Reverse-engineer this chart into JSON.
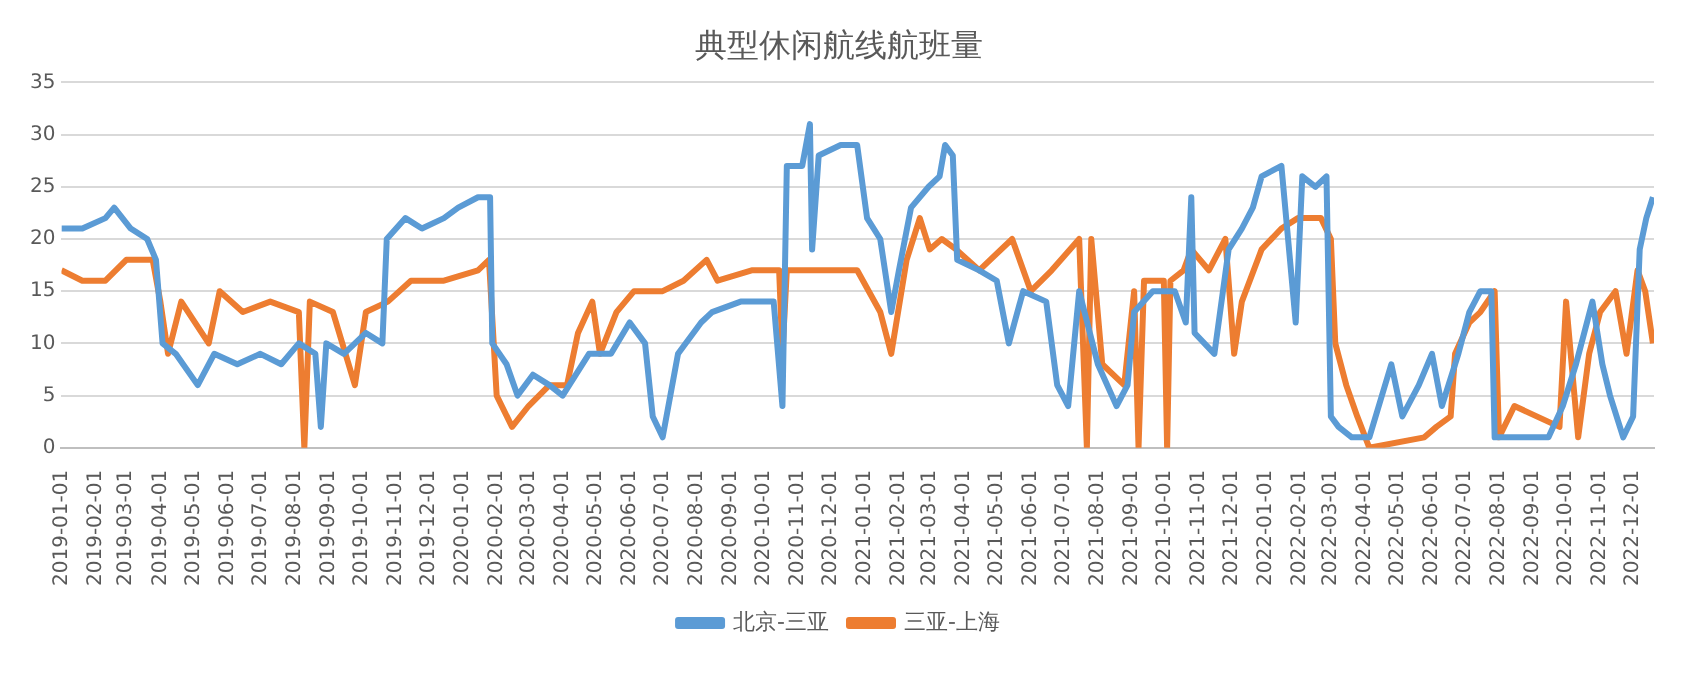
{
  "chart_data": {
    "type": "line",
    "title": "典型休闲航线航班量",
    "xlim": [
      "2019-01-01",
      "2022-12-20"
    ],
    "xticks": [
      "2019-01-01",
      "2019-02-01",
      "2019-03-01",
      "2019-04-01",
      "2019-05-01",
      "2019-06-01",
      "2019-07-01",
      "2019-08-01",
      "2019-09-01",
      "2019-10-01",
      "2019-11-01",
      "2019-12-01",
      "2020-01-01",
      "2020-02-01",
      "2020-03-01",
      "2020-04-01",
      "2020-05-01",
      "2020-06-01",
      "2020-07-01",
      "2020-08-01",
      "2020-09-01",
      "2020-10-01",
      "2020-11-01",
      "2020-12-01",
      "2021-01-01",
      "2021-02-01",
      "2021-03-01",
      "2021-04-01",
      "2021-05-01",
      "2021-06-01",
      "2021-07-01",
      "2021-08-01",
      "2021-09-01",
      "2021-10-01",
      "2021-11-01",
      "2021-12-01",
      "2022-01-01",
      "2022-02-01",
      "2022-03-01",
      "2022-04-01",
      "2022-05-01",
      "2022-06-01",
      "2022-07-01",
      "2022-08-01",
      "2022-09-01",
      "2022-10-01",
      "2022-11-01",
      "2022-12-01"
    ],
    "ylim": [
      0,
      35
    ],
    "yticks": [
      0,
      5,
      10,
      15,
      20,
      25,
      30,
      35
    ],
    "grid": "y",
    "legend": "bottom",
    "marker": "none",
    "line_style": "solid",
    "series": [
      {
        "name": "北京-三亚",
        "color": "#5b9bd5",
        "x": [
          "2019-01-01",
          "2019-01-20",
          "2019-02-10",
          "2019-02-18",
          "2019-03-05",
          "2019-03-20",
          "2019-03-28",
          "2019-04-03",
          "2019-04-15",
          "2019-05-05",
          "2019-05-20",
          "2019-06-10",
          "2019-07-01",
          "2019-07-20",
          "2019-08-05",
          "2019-08-20",
          "2019-08-25",
          "2019-08-30",
          "2019-09-15",
          "2019-10-05",
          "2019-10-20",
          "2019-10-24",
          "2019-11-10",
          "2019-11-25",
          "2019-12-15",
          "2019-12-28",
          "2020-01-15",
          "2020-01-26",
          "2020-01-28",
          "2020-02-10",
          "2020-02-20",
          "2020-03-05",
          "2020-03-20",
          "2020-04-01",
          "2020-04-25",
          "2020-05-15",
          "2020-06-01",
          "2020-06-15",
          "2020-06-22",
          "2020-07-01",
          "2020-07-15",
          "2020-08-05",
          "2020-08-15",
          "2020-09-10",
          "2020-10-10",
          "2020-10-18",
          "2020-10-22",
          "2020-11-05",
          "2020-11-12",
          "2020-11-14",
          "2020-11-20",
          "2020-12-10",
          "2020-12-25",
          "2021-01-03",
          "2021-01-15",
          "2021-01-25",
          "2021-02-01",
          "2021-02-12",
          "2021-02-28",
          "2021-03-10",
          "2021-03-15",
          "2021-03-22",
          "2021-03-26",
          "2021-04-15",
          "2021-05-01",
          "2021-05-12",
          "2021-05-25",
          "2021-06-15",
          "2021-06-25",
          "2021-07-05",
          "2021-07-15",
          "2021-08-01",
          "2021-08-18",
          "2021-08-28",
          "2021-09-03",
          "2021-09-20",
          "2021-10-10",
          "2021-10-20",
          "2021-10-25",
          "2021-10-28",
          "2021-11-15",
          "2021-11-28",
          "2021-12-10",
          "2021-12-20",
          "2021-12-28",
          "2022-01-15",
          "2022-01-28",
          "2022-02-03",
          "2022-02-15",
          "2022-02-25",
          "2022-03-01",
          "2022-03-08",
          "2022-03-20",
          "2022-04-05",
          "2022-04-25",
          "2022-05-05",
          "2022-05-20",
          "2022-06-01",
          "2022-06-10",
          "2022-06-25",
          "2022-07-05",
          "2022-07-15",
          "2022-07-25",
          "2022-07-28",
          "2022-08-20",
          "2022-09-15",
          "2022-09-28",
          "2022-10-10",
          "2022-10-25",
          "2022-11-03",
          "2022-11-10",
          "2022-11-22",
          "2022-12-01",
          "2022-12-07",
          "2022-12-13",
          "2022-12-19"
        ],
        "values": [
          21,
          21,
          22,
          23,
          21,
          20,
          18,
          10,
          9,
          6,
          9,
          8,
          9,
          8,
          10,
          9,
          2,
          10,
          9,
          11,
          10,
          20,
          22,
          21,
          22,
          23,
          24,
          24,
          10,
          8,
          5,
          7,
          6,
          5,
          9,
          9,
          12,
          10,
          3,
          1,
          9,
          12,
          13,
          14,
          14,
          4,
          27,
          27,
          31,
          19,
          28,
          29,
          29,
          22,
          20,
          13,
          17,
          23,
          25,
          26,
          29,
          28,
          18,
          17,
          16,
          10,
          15,
          14,
          6,
          4,
          15,
          8,
          4,
          6,
          13,
          15,
          15,
          12,
          24,
          11,
          9,
          19,
          21,
          23,
          26,
          27,
          12,
          26,
          25,
          26,
          3,
          2,
          1,
          1,
          8,
          3,
          6,
          9,
          4,
          9,
          13,
          15,
          15,
          1,
          1,
          1,
          4,
          8,
          14,
          8,
          5,
          1,
          3,
          19,
          22,
          24
        ]
      },
      {
        "name": "三亚-上海",
        "color": "#ed7d31",
        "x": [
          "2019-01-01",
          "2019-01-20",
          "2019-02-10",
          "2019-03-01",
          "2019-03-25",
          "2019-04-01",
          "2019-04-08",
          "2019-04-20",
          "2019-05-15",
          "2019-05-25",
          "2019-06-15",
          "2019-07-10",
          "2019-08-05",
          "2019-08-10",
          "2019-08-15",
          "2019-09-05",
          "2019-09-25",
          "2019-10-05",
          "2019-10-25",
          "2019-11-15",
          "2019-12-15",
          "2020-01-15",
          "2020-01-25",
          "2020-02-01",
          "2020-02-15",
          "2020-03-01",
          "2020-03-20",
          "2020-04-05",
          "2020-04-15",
          "2020-04-28",
          "2020-05-05",
          "2020-05-20",
          "2020-06-05",
          "2020-07-01",
          "2020-07-20",
          "2020-08-10",
          "2020-08-20",
          "2020-09-20",
          "2020-10-15",
          "2020-10-18",
          "2020-10-22",
          "2020-12-01",
          "2020-12-25",
          "2021-01-15",
          "2021-01-25",
          "2021-02-08",
          "2021-02-20",
          "2021-03-01",
          "2021-03-12",
          "2021-03-25",
          "2021-04-15",
          "2021-05-15",
          "2021-06-01",
          "2021-06-20",
          "2021-07-15",
          "2021-07-22",
          "2021-07-26",
          "2021-08-05",
          "2021-08-25",
          "2021-09-03",
          "2021-09-07",
          "2021-09-12",
          "2021-09-30",
          "2021-10-03",
          "2021-10-06",
          "2021-10-18",
          "2021-10-25",
          "2021-11-10",
          "2021-11-25",
          "2021-12-03",
          "2021-12-10",
          "2021-12-28",
          "2022-01-15",
          "2022-01-30",
          "2022-02-20",
          "2022-03-01",
          "2022-03-05",
          "2022-03-15",
          "2022-03-25",
          "2022-04-05",
          "2022-05-25",
          "2022-06-05",
          "2022-06-18",
          "2022-06-22",
          "2022-07-05",
          "2022-07-15",
          "2022-07-28",
          "2022-08-01",
          "2022-08-15",
          "2022-09-25",
          "2022-10-01",
          "2022-10-12",
          "2022-10-22",
          "2022-11-01",
          "2022-11-15",
          "2022-11-25",
          "2022-12-05",
          "2022-12-12",
          "2022-12-19"
        ],
        "values": [
          17,
          16,
          16,
          18,
          18,
          14,
          9,
          14,
          10,
          15,
          13,
          14,
          13,
          0,
          14,
          13,
          6,
          13,
          14,
          16,
          16,
          17,
          18,
          5,
          2,
          4,
          6,
          6,
          11,
          14,
          9,
          13,
          15,
          15,
          16,
          18,
          16,
          17,
          17,
          9,
          17,
          17,
          17,
          13,
          9,
          18,
          22,
          19,
          20,
          19,
          17,
          20,
          15,
          17,
          20,
          0,
          20,
          8,
          6,
          15,
          0,
          16,
          16,
          0,
          16,
          17,
          19,
          17,
          20,
          9,
          14,
          19,
          21,
          22,
          22,
          20,
          10,
          6,
          3,
          0,
          1,
          2,
          3,
          9,
          12,
          13,
          15,
          1,
          4,
          2,
          14,
          1,
          9,
          13,
          15,
          9,
          17,
          15,
          10
        ]
      }
    ]
  }
}
